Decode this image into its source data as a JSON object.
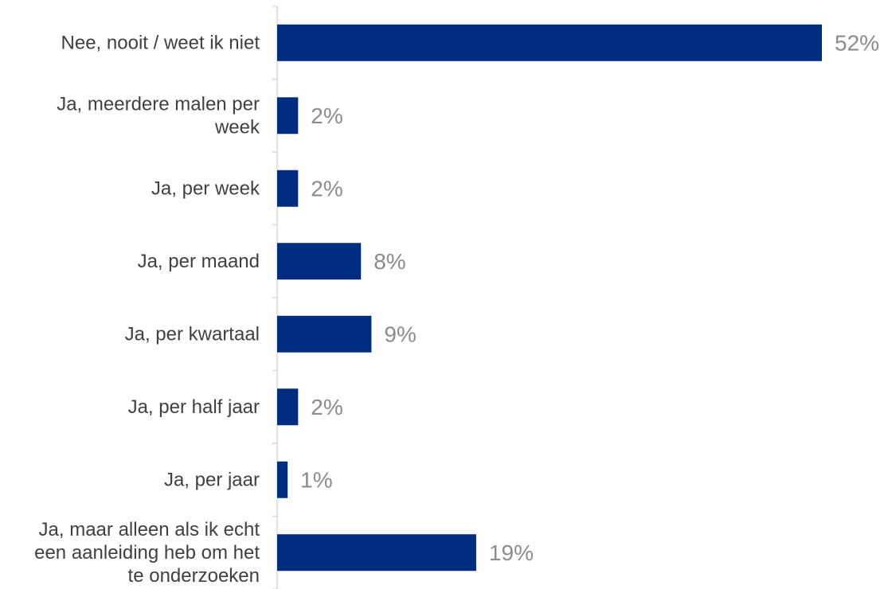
{
  "chart_data": {
    "type": "bar",
    "orientation": "horizontal",
    "categories": [
      "Nee, nooit / weet ik niet",
      "Ja, meerdere malen per week",
      "Ja, per week",
      "Ja, per maand",
      "Ja, per kwartaal",
      "Ja, per half jaar",
      "Ja, per jaar",
      "Ja, maar alleen als ik echt een aanleiding heb om het te onderzoeken"
    ],
    "category_lines": [
      [
        "Nee, nooit / weet ik niet"
      ],
      [
        "Ja, meerdere malen per",
        "week"
      ],
      [
        "Ja, per week"
      ],
      [
        "Ja, per maand"
      ],
      [
        "Ja, per kwartaal"
      ],
      [
        "Ja, per half jaar"
      ],
      [
        "Ja, per jaar"
      ],
      [
        "Ja, maar alleen als ik echt",
        "een aanleiding heb om het",
        "te onderzoeken"
      ]
    ],
    "values": [
      52,
      2,
      2,
      8,
      9,
      2,
      1,
      19
    ],
    "value_labels": [
      "52%",
      "2%",
      "2%",
      "8%",
      "9%",
      "2%",
      "1%",
      "19%"
    ],
    "unit": "%",
    "xlim": [
      0,
      52
    ],
    "grid": false,
    "legend": "none",
    "colors": {
      "bar": "#002d80",
      "value_label": "#8c8c8c",
      "category_label": "#404040",
      "axis": "#d9d9d9"
    }
  }
}
